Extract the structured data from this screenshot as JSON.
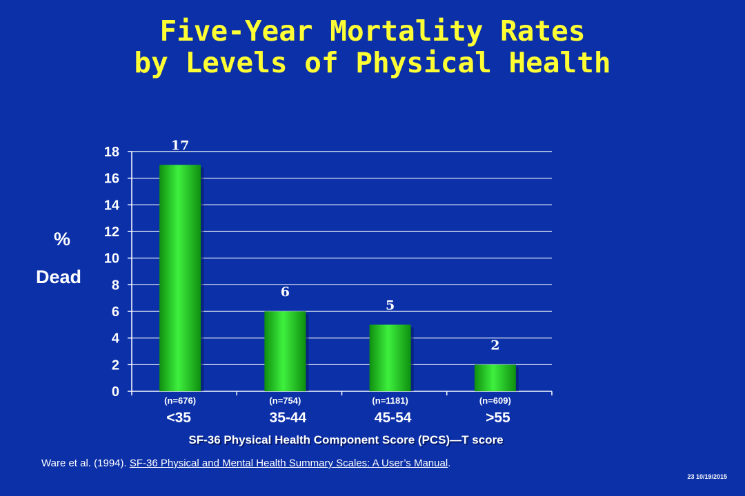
{
  "title_line1": "Five-Year Mortality Rates",
  "title_line2": "by Levels of Physical Health",
  "colors": {
    "background": "#0b30a8",
    "title": "#ffff33",
    "bar": "#19c219",
    "bar_highlight": "#3ef03e",
    "text": "#ffffff"
  },
  "chart_data": {
    "type": "bar",
    "categories": [
      "<35",
      "35-44",
      "45-54",
      ">55"
    ],
    "sample_sizes": [
      "(n=676)",
      "(n=754)",
      "(n=1181)",
      "(n=609)"
    ],
    "values": [
      17,
      6,
      5,
      2
    ],
    "data_labels": [
      "17",
      "6",
      "5",
      "2"
    ],
    "ylabel_line1": "%",
    "ylabel_line2": "Dead",
    "xlabel": "SF-36 Physical Health Component Score (PCS)—T score",
    "ylim": [
      0,
      18
    ],
    "yticks": [
      0,
      2,
      4,
      6,
      8,
      10,
      12,
      14,
      16,
      18
    ],
    "grid": true
  },
  "citation": {
    "prefix": "Ware et al.  (1994).  ",
    "link_text": "SF-36 Physical and Mental Health Summary Scales: A User’s Manual",
    "suffix": "."
  },
  "footer": "23 10/19/2015"
}
